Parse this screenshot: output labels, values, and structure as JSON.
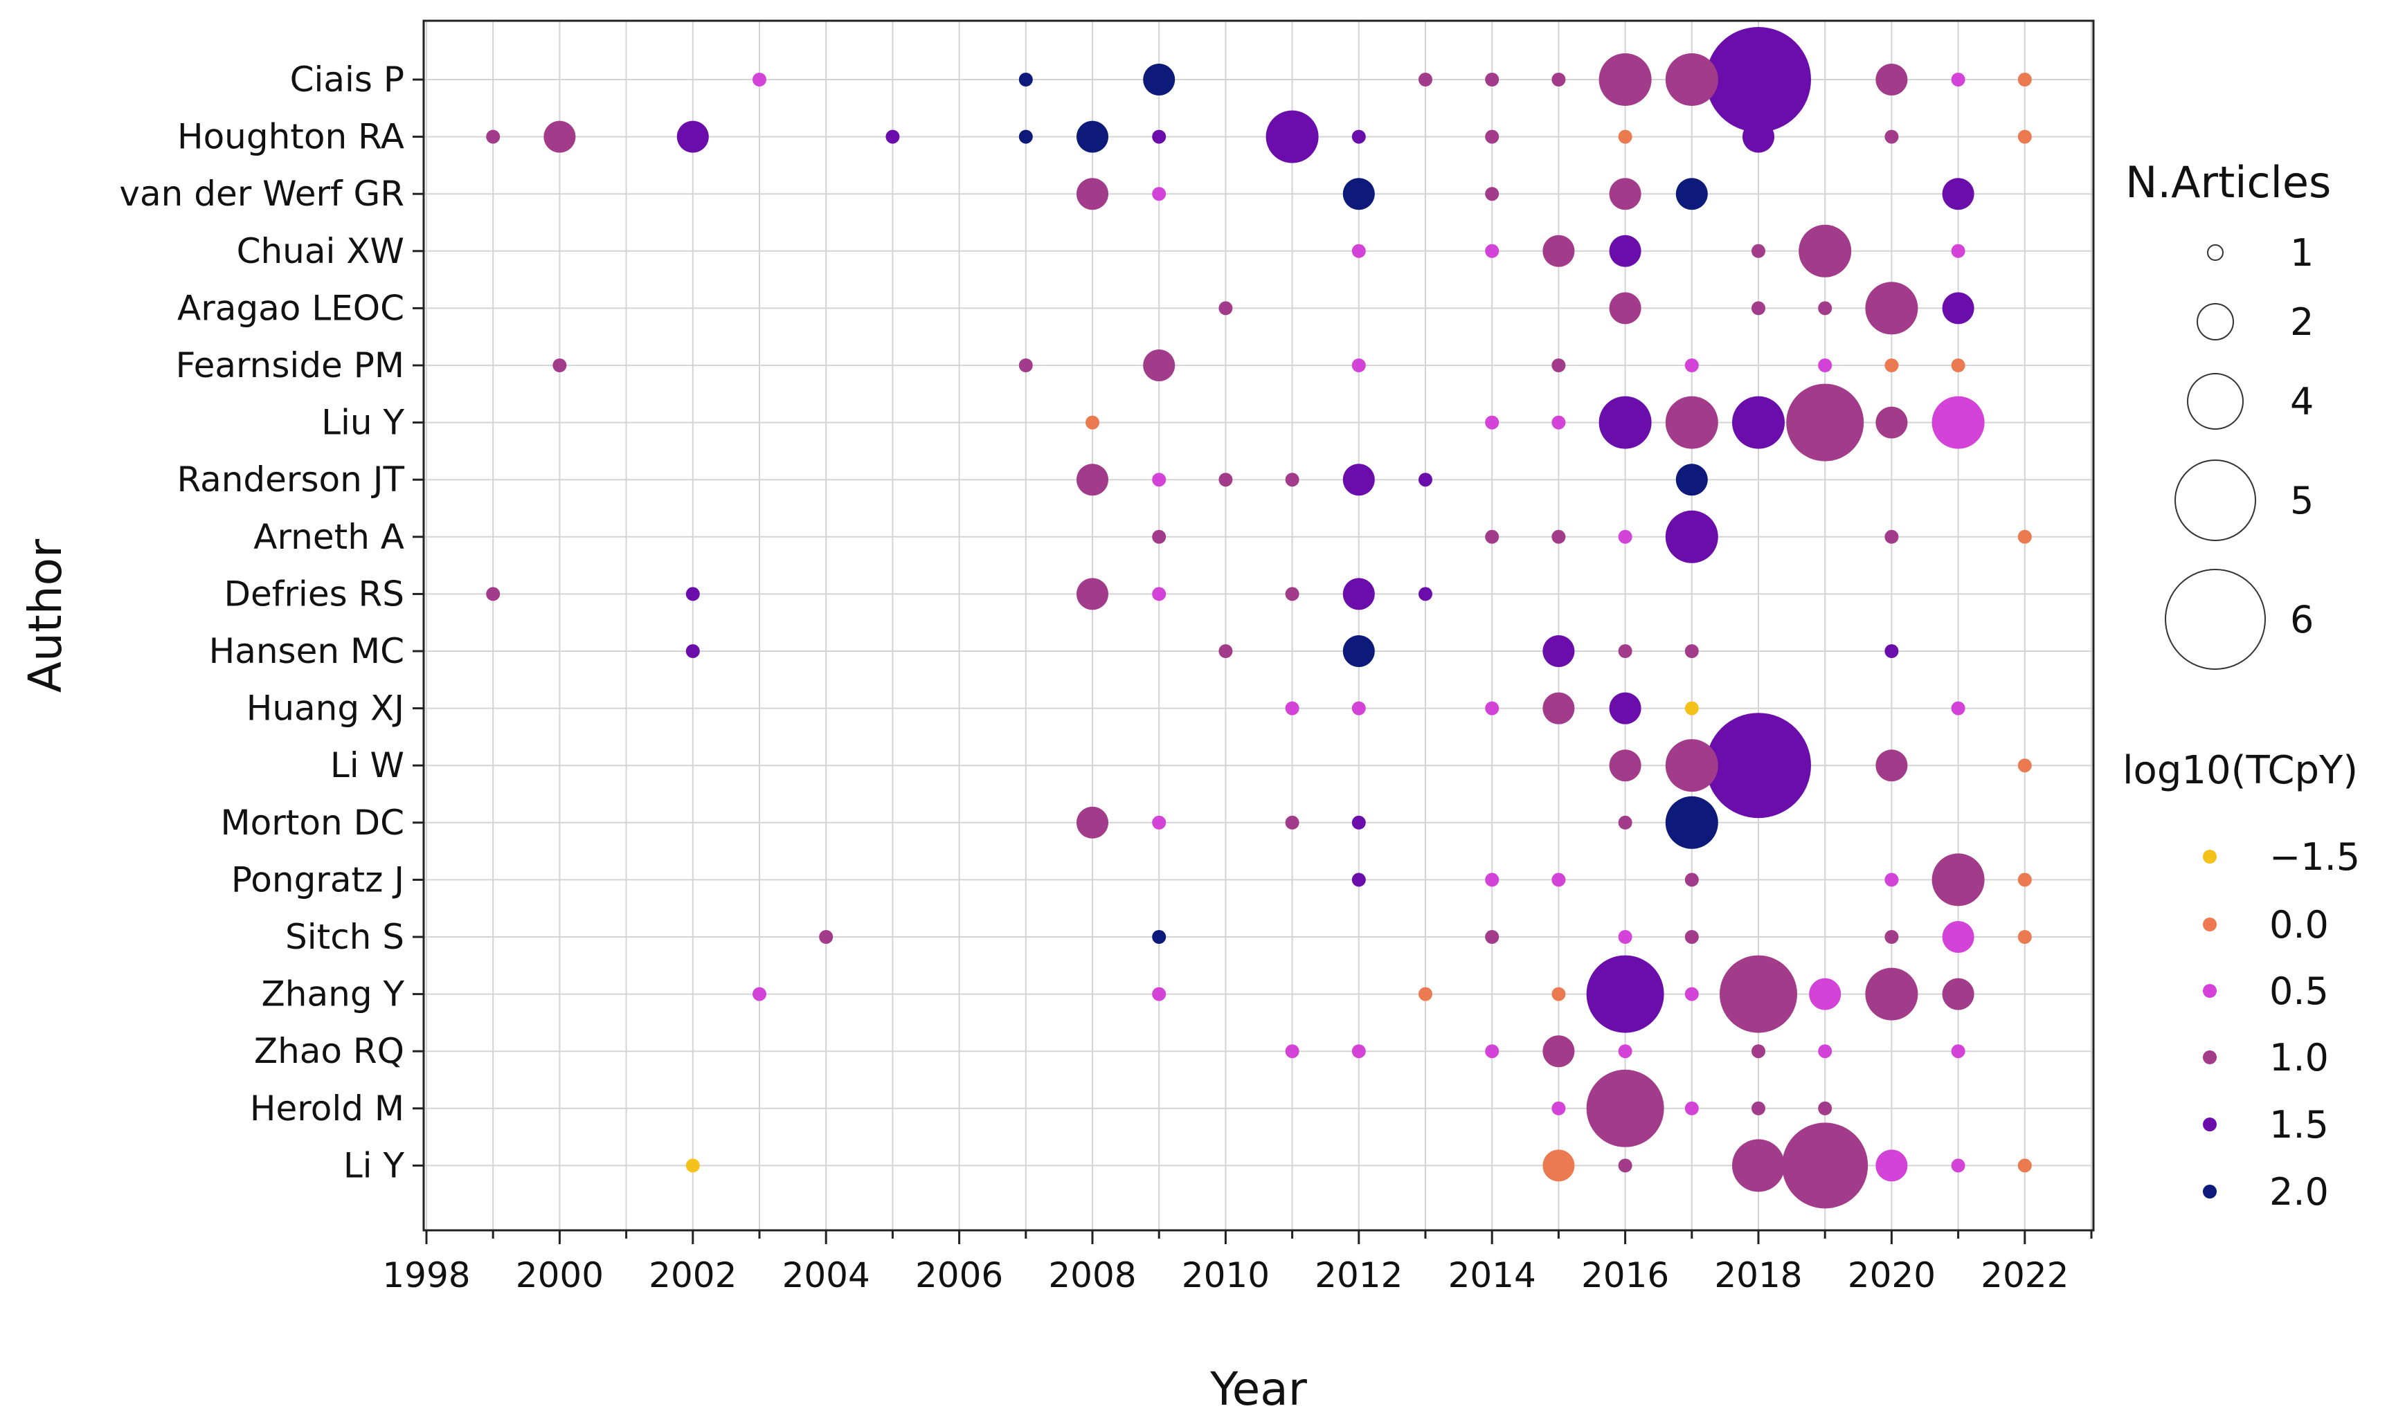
{
  "chart_data": {
    "type": "scatter",
    "subtype": "bubble",
    "title": "",
    "xlabel": "Year",
    "ylabel": "Author",
    "xlim": [
      1998,
      2023
    ],
    "x_ticks": [
      1998,
      2000,
      2002,
      2004,
      2006,
      2008,
      2010,
      2012,
      2014,
      2016,
      2018,
      2020,
      2022
    ],
    "grid": true,
    "authors": [
      "Ciais P",
      "Houghton RA",
      "van der Werf GR",
      "Chuai XW",
      "Aragao LEOC",
      "Fearnside PM",
      "Liu Y",
      "Randerson JT",
      "Arneth A",
      "Defries RS",
      "Hansen MC",
      "Huang XJ",
      "Li W",
      "Morton DC",
      "Pongratz J",
      "Sitch S",
      "Zhang Y",
      "Zhao RQ",
      "Herold M",
      "Li Y"
    ],
    "size_legend": {
      "title": "N.Articles",
      "labels": [
        "1",
        "2",
        "4",
        "5",
        "6"
      ],
      "values": [
        1,
        2,
        4,
        5,
        6
      ]
    },
    "color_legend": {
      "title": "log10(TCpY)",
      "labels": [
        "−1.5",
        "0.0",
        "0.5",
        "1.0",
        "1.5",
        "2.0"
      ],
      "values": [
        -1.5,
        0.0,
        0.5,
        1.0,
        1.5,
        2.0
      ],
      "colors": [
        "#f5c21b",
        "#ec7a50",
        "#d443d7",
        "#a23b8a",
        "#6a0dab",
        "#0d1a7a"
      ]
    },
    "points": [
      {
        "author": "Ciais P",
        "year": 2003,
        "n": 1,
        "c": 0.5
      },
      {
        "author": "Ciais P",
        "year": 2007,
        "n": 1,
        "c": 2.0
      },
      {
        "author": "Ciais P",
        "year": 2009,
        "n": 2,
        "c": 2.0
      },
      {
        "author": "Ciais P",
        "year": 2013,
        "n": 1,
        "c": 1.0
      },
      {
        "author": "Ciais P",
        "year": 2014,
        "n": 1,
        "c": 1.0
      },
      {
        "author": "Ciais P",
        "year": 2015,
        "n": 1,
        "c": 1.0
      },
      {
        "author": "Ciais P",
        "year": 2016,
        "n": 3,
        "c": 1.0
      },
      {
        "author": "Ciais P",
        "year": 2017,
        "n": 3,
        "c": 1.0
      },
      {
        "author": "Ciais P",
        "year": 2018,
        "n": 6,
        "c": 1.5
      },
      {
        "author": "Ciais P",
        "year": 2020,
        "n": 2,
        "c": 1.0
      },
      {
        "author": "Ciais P",
        "year": 2021,
        "n": 1,
        "c": 0.5
      },
      {
        "author": "Ciais P",
        "year": 2022,
        "n": 1,
        "c": 0.0
      },
      {
        "author": "Houghton RA",
        "year": 1999,
        "n": 1,
        "c": 1.0
      },
      {
        "author": "Houghton RA",
        "year": 2000,
        "n": 2,
        "c": 1.0
      },
      {
        "author": "Houghton RA",
        "year": 2002,
        "n": 2,
        "c": 1.5
      },
      {
        "author": "Houghton RA",
        "year": 2005,
        "n": 1,
        "c": 1.5
      },
      {
        "author": "Houghton RA",
        "year": 2007,
        "n": 1,
        "c": 2.0
      },
      {
        "author": "Houghton RA",
        "year": 2008,
        "n": 2,
        "c": 2.0
      },
      {
        "author": "Houghton RA",
        "year": 2009,
        "n": 1,
        "c": 1.5
      },
      {
        "author": "Houghton RA",
        "year": 2011,
        "n": 3,
        "c": 1.5
      },
      {
        "author": "Houghton RA",
        "year": 2012,
        "n": 1,
        "c": 1.5
      },
      {
        "author": "Houghton RA",
        "year": 2014,
        "n": 1,
        "c": 1.0
      },
      {
        "author": "Houghton RA",
        "year": 2016,
        "n": 1,
        "c": 0.0
      },
      {
        "author": "Houghton RA",
        "year": 2018,
        "n": 2,
        "c": 1.5
      },
      {
        "author": "Houghton RA",
        "year": 2020,
        "n": 1,
        "c": 1.0
      },
      {
        "author": "Houghton RA",
        "year": 2022,
        "n": 1,
        "c": 0.0
      },
      {
        "author": "van der Werf GR",
        "year": 2008,
        "n": 2,
        "c": 1.0
      },
      {
        "author": "van der Werf GR",
        "year": 2009,
        "n": 1,
        "c": 0.5
      },
      {
        "author": "van der Werf GR",
        "year": 2012,
        "n": 2,
        "c": 2.0
      },
      {
        "author": "van der Werf GR",
        "year": 2014,
        "n": 1,
        "c": 1.0
      },
      {
        "author": "van der Werf GR",
        "year": 2016,
        "n": 2,
        "c": 1.0
      },
      {
        "author": "van der Werf GR",
        "year": 2017,
        "n": 2,
        "c": 2.0
      },
      {
        "author": "van der Werf GR",
        "year": 2021,
        "n": 2,
        "c": 1.5
      },
      {
        "author": "Chuai XW",
        "year": 2012,
        "n": 1,
        "c": 0.5
      },
      {
        "author": "Chuai XW",
        "year": 2014,
        "n": 1,
        "c": 0.5
      },
      {
        "author": "Chuai XW",
        "year": 2015,
        "n": 2,
        "c": 1.0
      },
      {
        "author": "Chuai XW",
        "year": 2016,
        "n": 2,
        "c": 1.5
      },
      {
        "author": "Chuai XW",
        "year": 2018,
        "n": 1,
        "c": 1.0
      },
      {
        "author": "Chuai XW",
        "year": 2019,
        "n": 3,
        "c": 1.0
      },
      {
        "author": "Chuai XW",
        "year": 2021,
        "n": 1,
        "c": 0.5
      },
      {
        "author": "Aragao LEOC",
        "year": 2010,
        "n": 1,
        "c": 1.0
      },
      {
        "author": "Aragao LEOC",
        "year": 2016,
        "n": 2,
        "c": 1.0
      },
      {
        "author": "Aragao LEOC",
        "year": 2018,
        "n": 1,
        "c": 1.0
      },
      {
        "author": "Aragao LEOC",
        "year": 2019,
        "n": 1,
        "c": 1.0
      },
      {
        "author": "Aragao LEOC",
        "year": 2020,
        "n": 3,
        "c": 1.0
      },
      {
        "author": "Aragao LEOC",
        "year": 2021,
        "n": 2,
        "c": 1.5
      },
      {
        "author": "Fearnside PM",
        "year": 2000,
        "n": 1,
        "c": 1.0
      },
      {
        "author": "Fearnside PM",
        "year": 2007,
        "n": 1,
        "c": 1.0
      },
      {
        "author": "Fearnside PM",
        "year": 2009,
        "n": 2,
        "c": 1.0
      },
      {
        "author": "Fearnside PM",
        "year": 2012,
        "n": 1,
        "c": 0.5
      },
      {
        "author": "Fearnside PM",
        "year": 2015,
        "n": 1,
        "c": 1.0
      },
      {
        "author": "Fearnside PM",
        "year": 2017,
        "n": 1,
        "c": 0.5
      },
      {
        "author": "Fearnside PM",
        "year": 2019,
        "n": 1,
        "c": 0.5
      },
      {
        "author": "Fearnside PM",
        "year": 2020,
        "n": 1,
        "c": 0.0
      },
      {
        "author": "Fearnside PM",
        "year": 2021,
        "n": 1,
        "c": 0.0
      },
      {
        "author": "Liu Y",
        "year": 2008,
        "n": 1,
        "c": 0.0
      },
      {
        "author": "Liu Y",
        "year": 2014,
        "n": 1,
        "c": 0.5
      },
      {
        "author": "Liu Y",
        "year": 2015,
        "n": 1,
        "c": 0.5
      },
      {
        "author": "Liu Y",
        "year": 2016,
        "n": 3,
        "c": 1.5
      },
      {
        "author": "Liu Y",
        "year": 2017,
        "n": 3,
        "c": 1.0
      },
      {
        "author": "Liu Y",
        "year": 2018,
        "n": 3,
        "c": 1.5
      },
      {
        "author": "Liu Y",
        "year": 2019,
        "n": 4,
        "c": 1.0
      },
      {
        "author": "Liu Y",
        "year": 2020,
        "n": 2,
        "c": 1.0
      },
      {
        "author": "Liu Y",
        "year": 2021,
        "n": 3,
        "c": 0.5
      },
      {
        "author": "Randerson JT",
        "year": 2008,
        "n": 2,
        "c": 1.0
      },
      {
        "author": "Randerson JT",
        "year": 2009,
        "n": 1,
        "c": 0.5
      },
      {
        "author": "Randerson JT",
        "year": 2010,
        "n": 1,
        "c": 1.0
      },
      {
        "author": "Randerson JT",
        "year": 2011,
        "n": 1,
        "c": 1.0
      },
      {
        "author": "Randerson JT",
        "year": 2012,
        "n": 2,
        "c": 1.5
      },
      {
        "author": "Randerson JT",
        "year": 2013,
        "n": 1,
        "c": 1.5
      },
      {
        "author": "Randerson JT",
        "year": 2017,
        "n": 2,
        "c": 2.0
      },
      {
        "author": "Arneth A",
        "year": 2009,
        "n": 1,
        "c": 1.0
      },
      {
        "author": "Arneth A",
        "year": 2014,
        "n": 1,
        "c": 1.0
      },
      {
        "author": "Arneth A",
        "year": 2015,
        "n": 1,
        "c": 1.0
      },
      {
        "author": "Arneth A",
        "year": 2016,
        "n": 1,
        "c": 0.5
      },
      {
        "author": "Arneth A",
        "year": 2017,
        "n": 3,
        "c": 1.5
      },
      {
        "author": "Arneth A",
        "year": 2020,
        "n": 1,
        "c": 1.0
      },
      {
        "author": "Arneth A",
        "year": 2022,
        "n": 1,
        "c": 0.0
      },
      {
        "author": "Defries RS",
        "year": 1999,
        "n": 1,
        "c": 1.0
      },
      {
        "author": "Defries RS",
        "year": 2002,
        "n": 1,
        "c": 1.5
      },
      {
        "author": "Defries RS",
        "year": 2008,
        "n": 2,
        "c": 1.0
      },
      {
        "author": "Defries RS",
        "year": 2009,
        "n": 1,
        "c": 0.5
      },
      {
        "author": "Defries RS",
        "year": 2011,
        "n": 1,
        "c": 1.0
      },
      {
        "author": "Defries RS",
        "year": 2012,
        "n": 2,
        "c": 1.5
      },
      {
        "author": "Defries RS",
        "year": 2013,
        "n": 1,
        "c": 1.5
      },
      {
        "author": "Hansen MC",
        "year": 2002,
        "n": 1,
        "c": 1.5
      },
      {
        "author": "Hansen MC",
        "year": 2010,
        "n": 1,
        "c": 1.0
      },
      {
        "author": "Hansen MC",
        "year": 2012,
        "n": 2,
        "c": 2.0
      },
      {
        "author": "Hansen MC",
        "year": 2015,
        "n": 2,
        "c": 1.5
      },
      {
        "author": "Hansen MC",
        "year": 2016,
        "n": 1,
        "c": 1.0
      },
      {
        "author": "Hansen MC",
        "year": 2017,
        "n": 1,
        "c": 1.0
      },
      {
        "author": "Hansen MC",
        "year": 2020,
        "n": 1,
        "c": 1.5
      },
      {
        "author": "Huang XJ",
        "year": 2011,
        "n": 1,
        "c": 0.5
      },
      {
        "author": "Huang XJ",
        "year": 2012,
        "n": 1,
        "c": 0.5
      },
      {
        "author": "Huang XJ",
        "year": 2014,
        "n": 1,
        "c": 0.5
      },
      {
        "author": "Huang XJ",
        "year": 2015,
        "n": 2,
        "c": 1.0
      },
      {
        "author": "Huang XJ",
        "year": 2016,
        "n": 2,
        "c": 1.5
      },
      {
        "author": "Huang XJ",
        "year": 2017,
        "n": 1,
        "c": -1.5
      },
      {
        "author": "Huang XJ",
        "year": 2021,
        "n": 1,
        "c": 0.5
      },
      {
        "author": "Li W",
        "year": 2016,
        "n": 2,
        "c": 1.0
      },
      {
        "author": "Li W",
        "year": 2017,
        "n": 3,
        "c": 1.0
      },
      {
        "author": "Li W",
        "year": 2018,
        "n": 6,
        "c": 1.5
      },
      {
        "author": "Li W",
        "year": 2020,
        "n": 2,
        "c": 1.0
      },
      {
        "author": "Li W",
        "year": 2022,
        "n": 1,
        "c": 0.0
      },
      {
        "author": "Morton DC",
        "year": 2008,
        "n": 2,
        "c": 1.0
      },
      {
        "author": "Morton DC",
        "year": 2009,
        "n": 1,
        "c": 0.5
      },
      {
        "author": "Morton DC",
        "year": 2011,
        "n": 1,
        "c": 1.0
      },
      {
        "author": "Morton DC",
        "year": 2012,
        "n": 1,
        "c": 1.5
      },
      {
        "author": "Morton DC",
        "year": 2016,
        "n": 1,
        "c": 1.0
      },
      {
        "author": "Morton DC",
        "year": 2017,
        "n": 3,
        "c": 2.0
      },
      {
        "author": "Pongratz J",
        "year": 2012,
        "n": 1,
        "c": 1.5
      },
      {
        "author": "Pongratz J",
        "year": 2014,
        "n": 1,
        "c": 0.5
      },
      {
        "author": "Pongratz J",
        "year": 2015,
        "n": 1,
        "c": 0.5
      },
      {
        "author": "Pongratz J",
        "year": 2017,
        "n": 1,
        "c": 1.0
      },
      {
        "author": "Pongratz J",
        "year": 2020,
        "n": 1,
        "c": 0.5
      },
      {
        "author": "Pongratz J",
        "year": 2021,
        "n": 3,
        "c": 1.0
      },
      {
        "author": "Pongratz J",
        "year": 2022,
        "n": 1,
        "c": 0.0
      },
      {
        "author": "Sitch S",
        "year": 2004,
        "n": 1,
        "c": 1.0
      },
      {
        "author": "Sitch S",
        "year": 2009,
        "n": 1,
        "c": 2.0
      },
      {
        "author": "Sitch S",
        "year": 2014,
        "n": 1,
        "c": 1.0
      },
      {
        "author": "Sitch S",
        "year": 2016,
        "n": 1,
        "c": 0.5
      },
      {
        "author": "Sitch S",
        "year": 2017,
        "n": 1,
        "c": 1.0
      },
      {
        "author": "Sitch S",
        "year": 2020,
        "n": 1,
        "c": 1.0
      },
      {
        "author": "Sitch S",
        "year": 2021,
        "n": 2,
        "c": 0.5
      },
      {
        "author": "Sitch S",
        "year": 2022,
        "n": 1,
        "c": 0.0
      },
      {
        "author": "Zhang Y",
        "year": 2003,
        "n": 1,
        "c": 0.5
      },
      {
        "author": "Zhang Y",
        "year": 2009,
        "n": 1,
        "c": 0.5
      },
      {
        "author": "Zhang Y",
        "year": 2013,
        "n": 1,
        "c": 0.0
      },
      {
        "author": "Zhang Y",
        "year": 2015,
        "n": 1,
        "c": 0.0
      },
      {
        "author": "Zhang Y",
        "year": 2016,
        "n": 4,
        "c": 1.5
      },
      {
        "author": "Zhang Y",
        "year": 2017,
        "n": 1,
        "c": 0.5
      },
      {
        "author": "Zhang Y",
        "year": 2018,
        "n": 4,
        "c": 1.0
      },
      {
        "author": "Zhang Y",
        "year": 2019,
        "n": 2,
        "c": 0.5
      },
      {
        "author": "Zhang Y",
        "year": 2020,
        "n": 3,
        "c": 1.0
      },
      {
        "author": "Zhang Y",
        "year": 2021,
        "n": 2,
        "c": 1.0
      },
      {
        "author": "Zhao RQ",
        "year": 2011,
        "n": 1,
        "c": 0.5
      },
      {
        "author": "Zhao RQ",
        "year": 2012,
        "n": 1,
        "c": 0.5
      },
      {
        "author": "Zhao RQ",
        "year": 2014,
        "n": 1,
        "c": 0.5
      },
      {
        "author": "Zhao RQ",
        "year": 2015,
        "n": 2,
        "c": 1.0
      },
      {
        "author": "Zhao RQ",
        "year": 2016,
        "n": 1,
        "c": 0.5
      },
      {
        "author": "Zhao RQ",
        "year": 2018,
        "n": 1,
        "c": 1.0
      },
      {
        "author": "Zhao RQ",
        "year": 2019,
        "n": 1,
        "c": 0.5
      },
      {
        "author": "Zhao RQ",
        "year": 2021,
        "n": 1,
        "c": 0.5
      },
      {
        "author": "Herold M",
        "year": 2015,
        "n": 1,
        "c": 0.5
      },
      {
        "author": "Herold M",
        "year": 2016,
        "n": 4,
        "c": 1.0
      },
      {
        "author": "Herold M",
        "year": 2017,
        "n": 1,
        "c": 0.5
      },
      {
        "author": "Herold M",
        "year": 2018,
        "n": 1,
        "c": 1.0
      },
      {
        "author": "Herold M",
        "year": 2019,
        "n": 1,
        "c": 1.0
      },
      {
        "author": "Li Y",
        "year": 2002,
        "n": 1,
        "c": -1.5
      },
      {
        "author": "Li Y",
        "year": 2015,
        "n": 2,
        "c": 0.0
      },
      {
        "author": "Li Y",
        "year": 2016,
        "n": 1,
        "c": 1.0
      },
      {
        "author": "Li Y",
        "year": 2018,
        "n": 3,
        "c": 1.0
      },
      {
        "author": "Li Y",
        "year": 2019,
        "n": 5,
        "c": 1.0
      },
      {
        "author": "Li Y",
        "year": 2020,
        "n": 2,
        "c": 0.5
      },
      {
        "author": "Li Y",
        "year": 2021,
        "n": 1,
        "c": 0.5
      },
      {
        "author": "Li Y",
        "year": 2022,
        "n": 1,
        "c": 0.0
      }
    ]
  }
}
